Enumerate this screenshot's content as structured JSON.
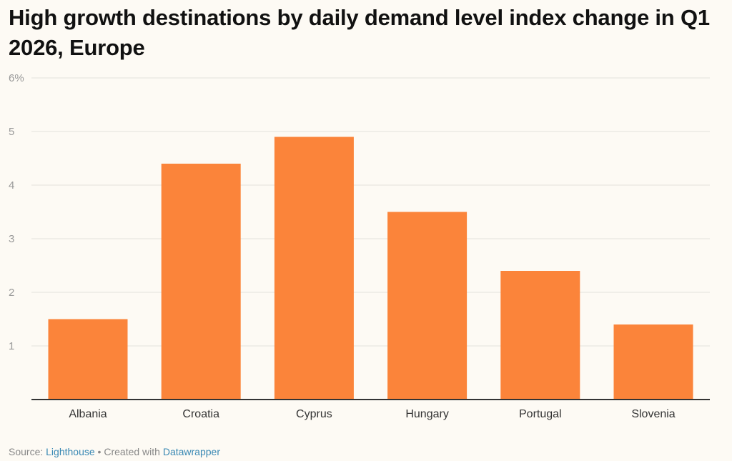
{
  "chart_data": {
    "type": "bar",
    "title": "High growth destinations by daily demand level index change in Q1 2026, Europe",
    "categories": [
      "Albania",
      "Croatia",
      "Cyprus",
      "Hungary",
      "Portugal",
      "Slovenia"
    ],
    "values": [
      1.5,
      4.4,
      4.9,
      3.5,
      2.4,
      1.4
    ],
    "ylim": [
      0,
      6
    ],
    "yticks": [
      1,
      2,
      3,
      4,
      5,
      6
    ],
    "ytick_labels": [
      "1",
      "2",
      "3",
      "4",
      "5",
      "6%"
    ],
    "xlabel": "",
    "ylabel": "",
    "grid": true,
    "bar_color": "#fb843a"
  },
  "footer": {
    "source_label": "Source:",
    "source_name": "Lighthouse",
    "separator": "•",
    "created_label": "Created with",
    "tool_name": "Datawrapper"
  }
}
